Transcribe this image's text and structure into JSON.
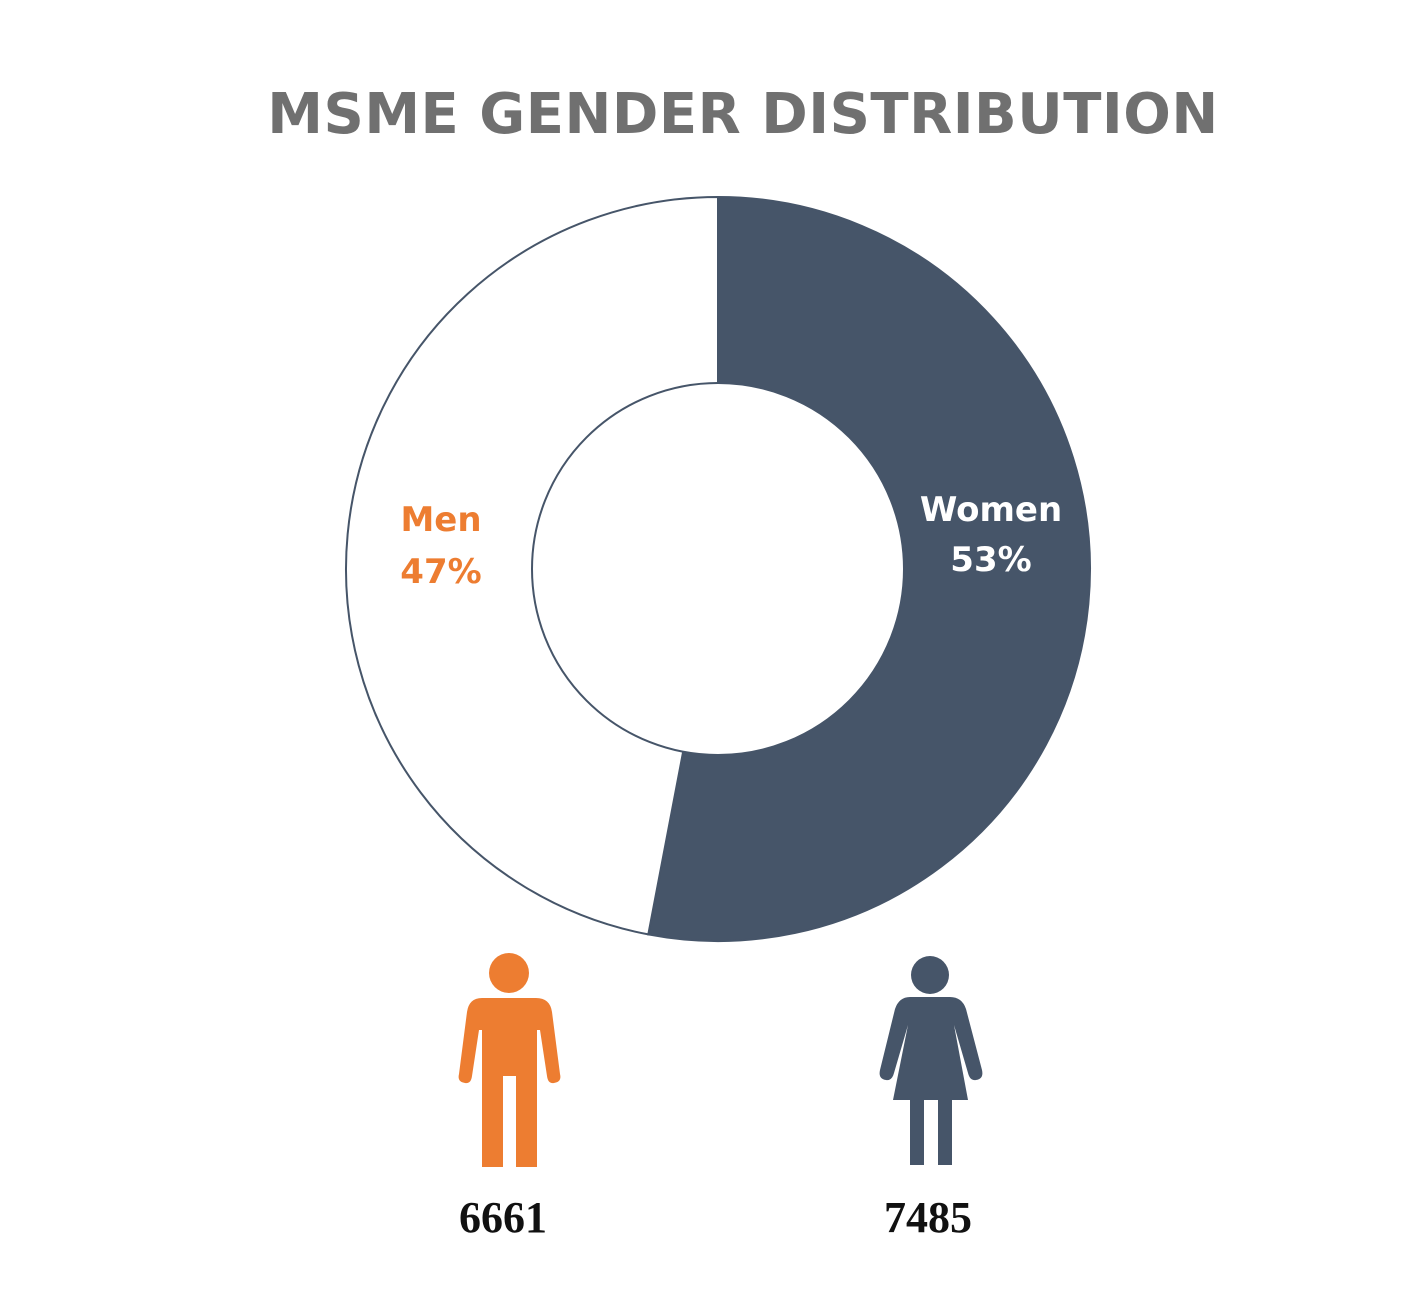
{
  "chart_data": {
    "type": "pie",
    "title": "MSME GENDER DISTRIBUTION",
    "slices": [
      {
        "name": "Women",
        "percent": 53,
        "percent_label": "53%",
        "count": 7485,
        "color": "#465569"
      },
      {
        "name": "Men",
        "percent": 47,
        "percent_label": "47%",
        "count": 6661,
        "color": "#ED7D31"
      }
    ],
    "donut": true,
    "labels_in_slices": true
  },
  "icons": {
    "men": "male-person-icon",
    "women": "female-person-icon"
  },
  "counts": {
    "men": "6661",
    "women": "7485"
  }
}
